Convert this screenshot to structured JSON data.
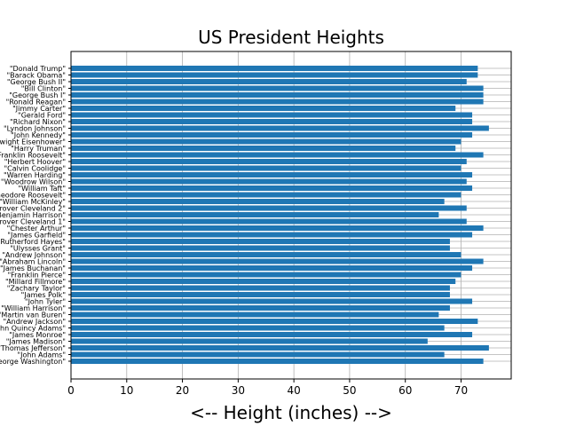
{
  "chart_data": {
    "type": "bar",
    "orientation": "horizontal",
    "title": "US President Heights",
    "xlabel": "<-- Height (inches) -->",
    "ylabel": "",
    "xlim": [
      0,
      79
    ],
    "xticks": [
      0,
      10,
      20,
      30,
      40,
      50,
      60,
      70
    ],
    "grid": true,
    "legend": "none",
    "bar_color": "#1f77b4",
    "categories": [
      "\"George Washington\"",
      "\"John Adams\"",
      "\"Thomas Jefferson\"",
      "\"James Madison\"",
      "\"James Monroe\"",
      "\"John Quincy Adams\"",
      "\"Andrew Jackson\"",
      "\"Martin van Buren\"",
      "\"William Harrison\"",
      "\"John Tyler\"",
      "\"James Polk\"",
      "\"Zachary Taylor\"",
      "\"Millard Fillmore\"",
      "\"Franklin Pierce\"",
      "\"James Buchanan\"",
      "\"Abraham Lincoln\"",
      "\"Andrew Johnson\"",
      "\"Ulysses Grant\"",
      "\"Rutherford Hayes\"",
      "\"James Garfield\"",
      "\"Chester Arthur\"",
      "\"Grover Cleveland 1\"",
      "\"Benjamin Harrison\"",
      "\"Grover Cleveland 2\"",
      "\"William McKinley\"",
      "\"Theodore Roosevelt\"",
      "\"William Taft\"",
      "\"Woodrow Wilson\"",
      "\"Warren Harding\"",
      "\"Calvin Coolidge\"",
      "\"Herbert Hoover\"",
      "\"Franklin Roosevelt\"",
      "\"Harry Truman\"",
      "\"Dwight Eisenhower\"",
      "\"John Kennedy\"",
      "\"Lyndon Johnson\"",
      "\"Richard Nixon\"",
      "\"Gerald Ford\"",
      "\"Jimmy Carter\"",
      "\"Ronald Reagan\"",
      "\"George Bush I\"",
      "\"Bill Clinton\"",
      "\"George Bush II\"",
      "\"Barack Obama\"",
      "\"Donald Trump\""
    ],
    "values": [
      74,
      67,
      75,
      64,
      72,
      67,
      73,
      66,
      68,
      72,
      68,
      68,
      69,
      70,
      72,
      74,
      70,
      68,
      68,
      72,
      74,
      71,
      66,
      71,
      67,
      70,
      72,
      71,
      72,
      70,
      71,
      74,
      69,
      70,
      72,
      75,
      72,
      72,
      69,
      74,
      74,
      74,
      71,
      73,
      73
    ]
  }
}
